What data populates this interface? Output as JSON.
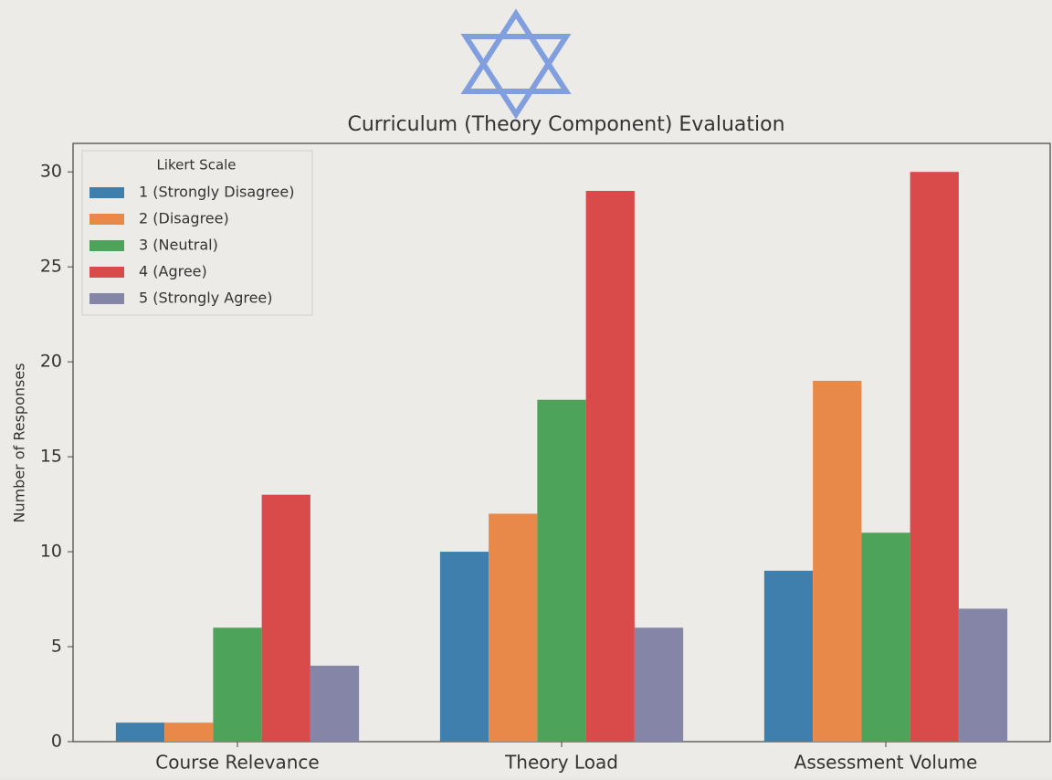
{
  "chart_data": {
    "type": "bar",
    "title": "Curriculum (Theory Component) Evaluation",
    "ylabel": "Number of Responses",
    "categories": [
      "Course Relevance",
      "Theory Load",
      "Assessment Volume"
    ],
    "legend_title": "Likert Scale",
    "legend": "upper left",
    "series": [
      {
        "name": "1 (Strongly Disagree)",
        "color": "#3f7fae",
        "values": [
          1,
          10,
          9
        ]
      },
      {
        "name": "2 (Disagree)",
        "color": "#e8894a",
        "values": [
          1,
          12,
          19
        ]
      },
      {
        "name": "3 (Neutral)",
        "color": "#4ea35a",
        "values": [
          6,
          18,
          11
        ]
      },
      {
        "name": "4 (Agree)",
        "color": "#d94a4a",
        "values": [
          13,
          29,
          30
        ]
      },
      {
        "name": "5 (Strongly Agree)",
        "color": "#8585a8",
        "values": [
          4,
          6,
          7
        ]
      }
    ],
    "ylim": [
      0,
      31.5
    ],
    "yticks": [
      0,
      5,
      10,
      15,
      20,
      25,
      30
    ]
  }
}
